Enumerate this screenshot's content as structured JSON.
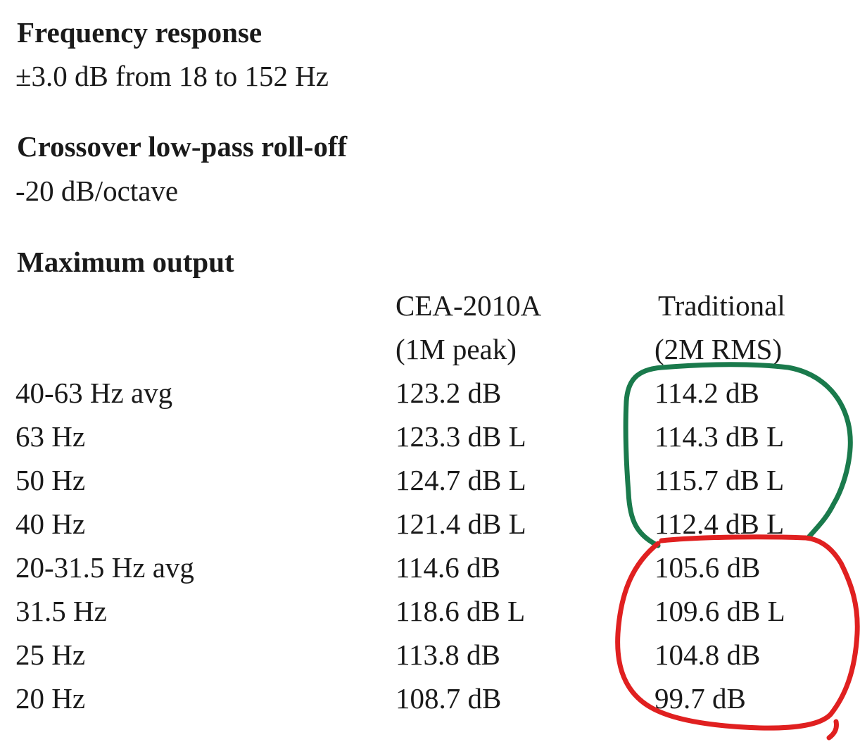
{
  "frequency_response": {
    "heading": "Frequency response",
    "value": "±3.0 dB from 18 to 152 Hz"
  },
  "crossover": {
    "heading": "Crossover low-pass roll-off",
    "value": "-20 dB/octave"
  },
  "maximum_output": {
    "heading": "Maximum output",
    "columns": {
      "cea": {
        "line1": "CEA-2010A",
        "line2": "(1M peak)"
      },
      "traditional": {
        "line1": "Traditional",
        "line2": "(2M RMS)"
      }
    },
    "rows": [
      {
        "label": "40-63 Hz avg",
        "cea": "123.2 dB",
        "traditional": "114.2 dB"
      },
      {
        "label": "63 Hz",
        "cea": "123.3 dB L",
        "traditional": "114.3 dB L"
      },
      {
        "label": "50 Hz",
        "cea": "124.7 dB L",
        "traditional": "115.7 dB L"
      },
      {
        "label": "40 Hz",
        "cea": "121.4 dB L",
        "traditional": "112.4 dB L"
      },
      {
        "label": "20-31.5 Hz avg",
        "cea": "114.6 dB",
        "traditional": "105.6 dB"
      },
      {
        "label": "31.5 Hz",
        "cea": "118.6 dB L",
        "traditional": "109.6 dB L"
      },
      {
        "label": "25 Hz",
        "cea": "113.8 dB",
        "traditional": "104.8 dB"
      },
      {
        "label": "20 Hz",
        "cea": "108.7 dB",
        "traditional": "99.7 dB"
      }
    ]
  },
  "annotation_colors": {
    "green_loop": "#1a7a4c",
    "red_loop": "#e02020"
  }
}
